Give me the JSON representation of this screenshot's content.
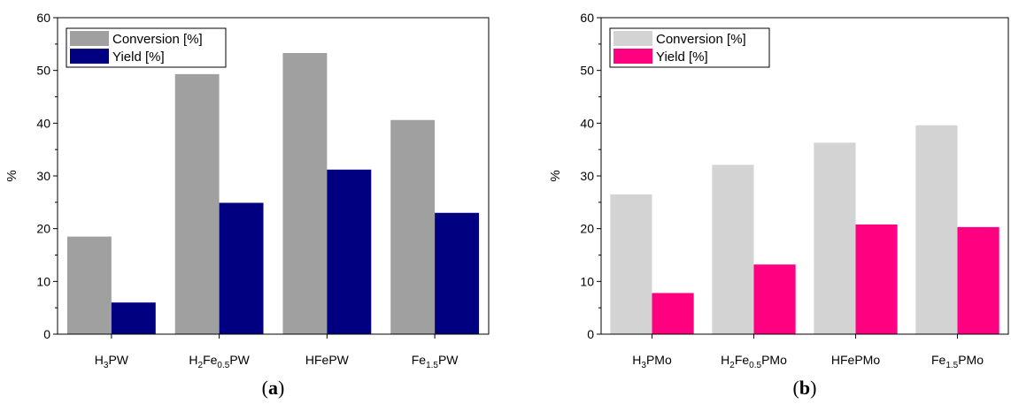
{
  "chart_data": [
    {
      "type": "bar",
      "panel_label": "a",
      "ylabel": "%",
      "ylim": [
        0,
        60
      ],
      "yticks": [
        0,
        10,
        20,
        30,
        40,
        50,
        60
      ],
      "categories": [
        {
          "base": "H",
          "sub1": "3",
          "mid": "PW",
          "sub2": "",
          "tail": ""
        },
        {
          "base": "H",
          "sub1": "2",
          "mid": "Fe",
          "sub2": "0.5",
          "tail": "PW"
        },
        {
          "base": "HFePW",
          "sub1": "",
          "mid": "",
          "sub2": "",
          "tail": ""
        },
        {
          "base": "Fe",
          "sub1": "1.5",
          "mid": "PW",
          "sub2": "",
          "tail": ""
        }
      ],
      "series": [
        {
          "name": "Conversion [%]",
          "color": "#a0a0a0",
          "values": [
            18.5,
            49.3,
            53.3,
            40.6
          ]
        },
        {
          "name": "Yield [%]",
          "color": "#000080",
          "values": [
            6.0,
            24.9,
            31.2,
            23.0
          ]
        }
      ],
      "legend": "top-left",
      "grid": false
    },
    {
      "type": "bar",
      "panel_label": "b",
      "ylabel": "%",
      "ylim": [
        0,
        60
      ],
      "yticks": [
        0,
        10,
        20,
        30,
        40,
        50,
        60
      ],
      "categories": [
        {
          "base": "H",
          "sub1": "3",
          "mid": "PMo",
          "sub2": "",
          "tail": ""
        },
        {
          "base": "H",
          "sub1": "2",
          "mid": "Fe",
          "sub2": "0.5",
          "tail": "PMo"
        },
        {
          "base": "HFePMo",
          "sub1": "",
          "mid": "",
          "sub2": "",
          "tail": ""
        },
        {
          "base": "Fe",
          "sub1": "1.5",
          "mid": "PMo",
          "sub2": "",
          "tail": ""
        }
      ],
      "series": [
        {
          "name": "Conversion [%]",
          "color": "#d3d3d3",
          "values": [
            26.5,
            32.1,
            36.3,
            39.6
          ]
        },
        {
          "name": "Yield [%]",
          "color": "#ff0080",
          "values": [
            7.8,
            13.2,
            20.8,
            20.3
          ]
        }
      ],
      "legend": "top-left",
      "grid": false
    }
  ]
}
